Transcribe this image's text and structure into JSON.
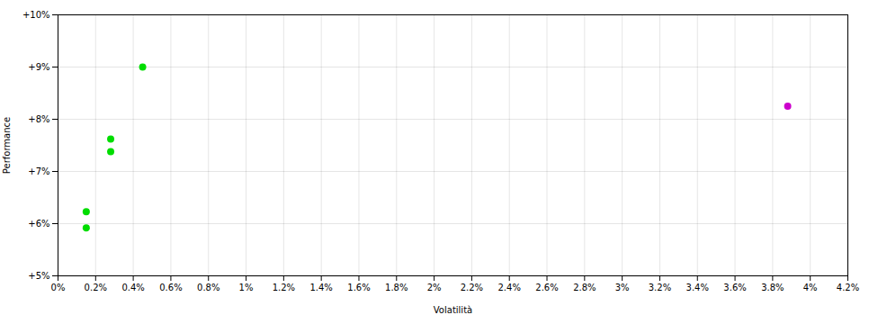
{
  "chart_data": {
    "type": "scatter",
    "xlabel": "Volatilità",
    "ylabel": "Performance",
    "xlim": [
      0,
      0.042
    ],
    "ylim": [
      0.05,
      0.1
    ],
    "xticks": [
      {
        "value": 0.0,
        "label": "0%"
      },
      {
        "value": 0.002,
        "label": "0.2%"
      },
      {
        "value": 0.004,
        "label": "0.4%"
      },
      {
        "value": 0.006,
        "label": "0.6%"
      },
      {
        "value": 0.008,
        "label": "0.8%"
      },
      {
        "value": 0.01,
        "label": "1%"
      },
      {
        "value": 0.012,
        "label": "1.2%"
      },
      {
        "value": 0.014,
        "label": "1.4%"
      },
      {
        "value": 0.016,
        "label": "1.6%"
      },
      {
        "value": 0.018,
        "label": "1.8%"
      },
      {
        "value": 0.02,
        "label": "2%"
      },
      {
        "value": 0.022,
        "label": "2.2%"
      },
      {
        "value": 0.024,
        "label": "2.4%"
      },
      {
        "value": 0.026,
        "label": "2.6%"
      },
      {
        "value": 0.028,
        "label": "2.8%"
      },
      {
        "value": 0.03,
        "label": "3%"
      },
      {
        "value": 0.032,
        "label": "3.2%"
      },
      {
        "value": 0.034,
        "label": "3.4%"
      },
      {
        "value": 0.036,
        "label": "3.6%"
      },
      {
        "value": 0.038,
        "label": "3.8%"
      },
      {
        "value": 0.04,
        "label": "4%"
      },
      {
        "value": 0.042,
        "label": "4.2%"
      }
    ],
    "yticks": [
      {
        "value": 0.05,
        "label": "+5%"
      },
      {
        "value": 0.06,
        "label": "+6%"
      },
      {
        "value": 0.07,
        "label": "+7%"
      },
      {
        "value": 0.08,
        "label": "+8%"
      },
      {
        "value": 0.09,
        "label": "+9%"
      },
      {
        "value": 0.1,
        "label": "+10%"
      }
    ],
    "grid": true,
    "series": [
      {
        "color": "#00dd00",
        "x": [
          0.0015,
          0.0015,
          0.0028,
          0.0028,
          0.0045
        ],
        "y": [
          0.0623,
          0.0592,
          0.0762,
          0.0738,
          0.09
        ]
      },
      {
        "color": "#cc00cc",
        "x": [
          0.0388
        ],
        "y": [
          0.0825
        ]
      }
    ]
  }
}
